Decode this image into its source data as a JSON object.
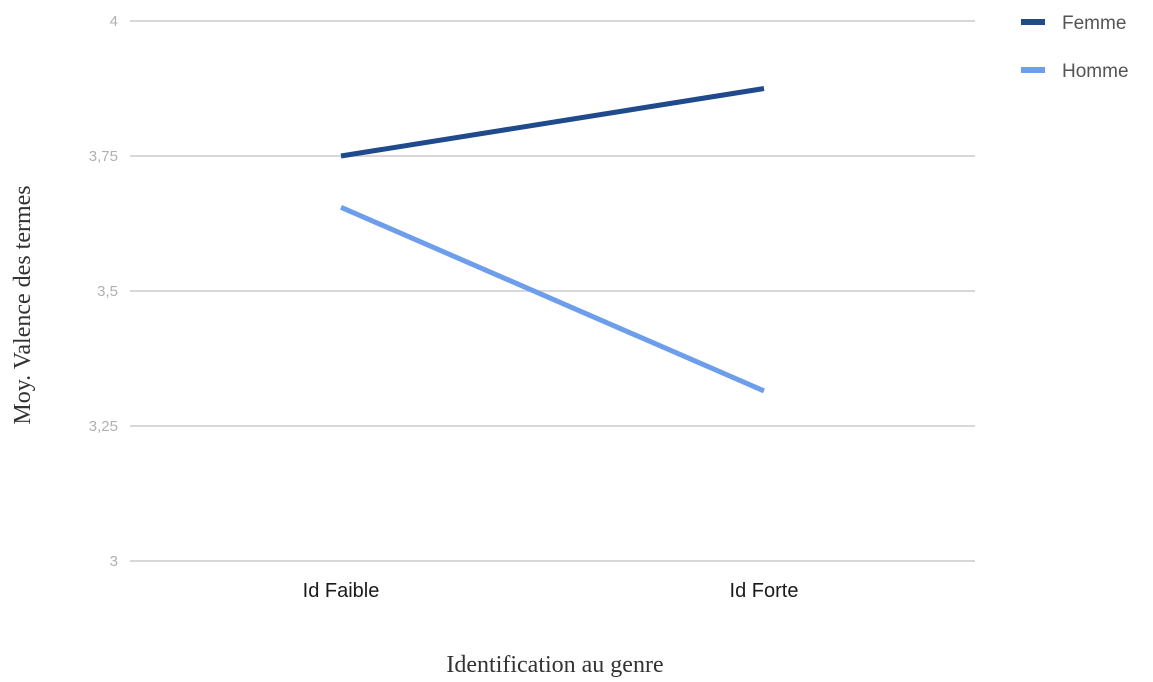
{
  "chart_data": {
    "type": "line",
    "title": "",
    "xlabel": "Identification au genre",
    "ylabel": "Moy. Valence des termes",
    "categories": [
      "Id Faible",
      "Id Forte"
    ],
    "ylim": [
      3,
      4
    ],
    "yticks": [
      "3",
      "3,25",
      "3,5",
      "3,75",
      "4"
    ],
    "grid": true,
    "legend_position": "top-right",
    "series": [
      {
        "name": "Femme",
        "color": "#1f4a8c",
        "values": [
          3.75,
          3.875
        ]
      },
      {
        "name": "Homme",
        "color": "#6d9eeb",
        "values": [
          3.655,
          3.315
        ]
      }
    ]
  }
}
